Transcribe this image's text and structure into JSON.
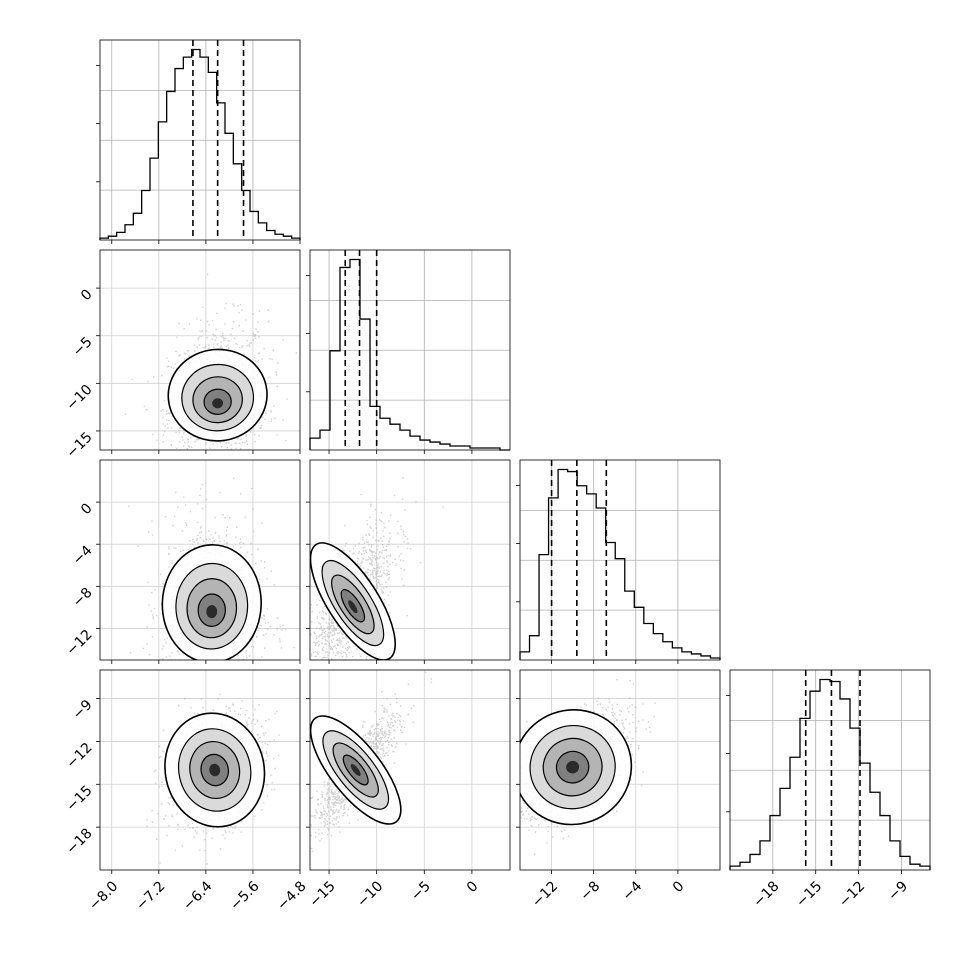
{
  "chart_data": {
    "type": "corner",
    "title": "",
    "grid": true,
    "parameters": [
      {
        "range": [
          -8.2,
          -4.8
        ],
        "ticks": [
          -8.0,
          -7.2,
          -6.4,
          -5.6,
          -4.8
        ],
        "tick_labels": [
          "−8.0",
          "−7.2",
          "−6.4",
          "−5.6",
          "−4.8"
        ],
        "quantiles": [
          -6.62,
          -6.2,
          -5.76
        ],
        "hist": [
          1,
          2,
          4,
          8,
          14,
          26,
          43,
          62,
          78,
          90,
          96,
          100,
          96,
          88,
          72,
          56,
          40,
          26,
          15,
          9,
          5,
          3,
          2,
          1
        ]
      },
      {
        "range": [
          -17.0,
          4.0
        ],
        "ticks": [
          -15,
          -10,
          -5,
          0
        ],
        "tick_labels": [
          "−15",
          "−10",
          "−5",
          "0"
        ],
        "quantiles": [
          -13.3,
          -11.8,
          -10.0
        ],
        "hist": [
          6,
          10,
          50,
          92,
          96,
          66,
          22,
          16,
          13,
          10,
          7,
          5,
          4,
          3,
          2,
          2,
          1,
          1,
          1,
          0
        ]
      },
      {
        "range": [
          -15.0,
          4.0
        ],
        "ticks": [
          -12,
          -8,
          -4,
          0
        ],
        "tick_labels": [
          "−12",
          "−8",
          "−4",
          "0"
        ],
        "quantiles": [
          -12.0,
          -9.6,
          -6.8
        ],
        "hist": [
          4,
          12,
          52,
          80,
          94,
          93,
          86,
          82,
          75,
          58,
          50,
          34,
          26,
          18,
          13,
          9,
          6,
          4,
          3,
          2,
          1
        ]
      },
      {
        "range": [
          -21.0,
          -7.0
        ],
        "ticks": [
          -18,
          -15,
          -12,
          -9
        ],
        "tick_labels": [
          "−18",
          "−15",
          "−12",
          "−9"
        ],
        "quantiles": [
          -15.7,
          -13.9,
          -11.9
        ],
        "hist": [
          2,
          4,
          8,
          15,
          28,
          42,
          58,
          78,
          92,
          98,
          97,
          88,
          73,
          55,
          40,
          28,
          15,
          7,
          3,
          2
        ]
      }
    ],
    "ylim_ticks": [
      null,
      {
        "ticks": [
          0,
          -5,
          -10,
          -15
        ],
        "tick_labels": [
          "0",
          "−5",
          "−10",
          "−15"
        ]
      },
      {
        "ticks": [
          0,
          -4,
          -8,
          -12
        ],
        "tick_labels": [
          "0",
          "−4",
          "−8",
          "−12"
        ]
      },
      {
        "ticks": [
          -9,
          -12,
          -15,
          -18
        ],
        "tick_labels": [
          "−9",
          "−12",
          "−15",
          "−18"
        ]
      }
    ],
    "pairs": [
      {
        "x": 0,
        "y": 1,
        "center": [
          -6.2,
          -12.2
        ],
        "std": [
          0.42,
          2.4
        ],
        "corr": 0.15,
        "skew_y": 0.8
      },
      {
        "x": 0,
        "y": 2,
        "center": [
          -6.3,
          -10.5
        ],
        "std": [
          0.42,
          2.8
        ],
        "corr": -0.05,
        "skew_y": 0.6
      },
      {
        "x": 1,
        "y": 2,
        "center": [
          -12.5,
          -10.0
        ],
        "std": [
          2.2,
          2.8
        ],
        "corr": 0.72,
        "skew_y": 0.4
      },
      {
        "x": 0,
        "y": 3,
        "center": [
          -6.25,
          -14.0
        ],
        "std": [
          0.42,
          2.0
        ],
        "corr": 0.3,
        "skew_y": 0.0
      },
      {
        "x": 1,
        "y": 3,
        "center": [
          -12.2,
          -14.0
        ],
        "std": [
          2.2,
          2.0
        ],
        "corr": 0.85,
        "skew_y": 0.0
      },
      {
        "x": 2,
        "y": 3,
        "center": [
          -10.0,
          -13.8
        ],
        "std": [
          2.8,
          2.0
        ],
        "corr": 0.55,
        "skew_y": 0.0
      }
    ]
  }
}
